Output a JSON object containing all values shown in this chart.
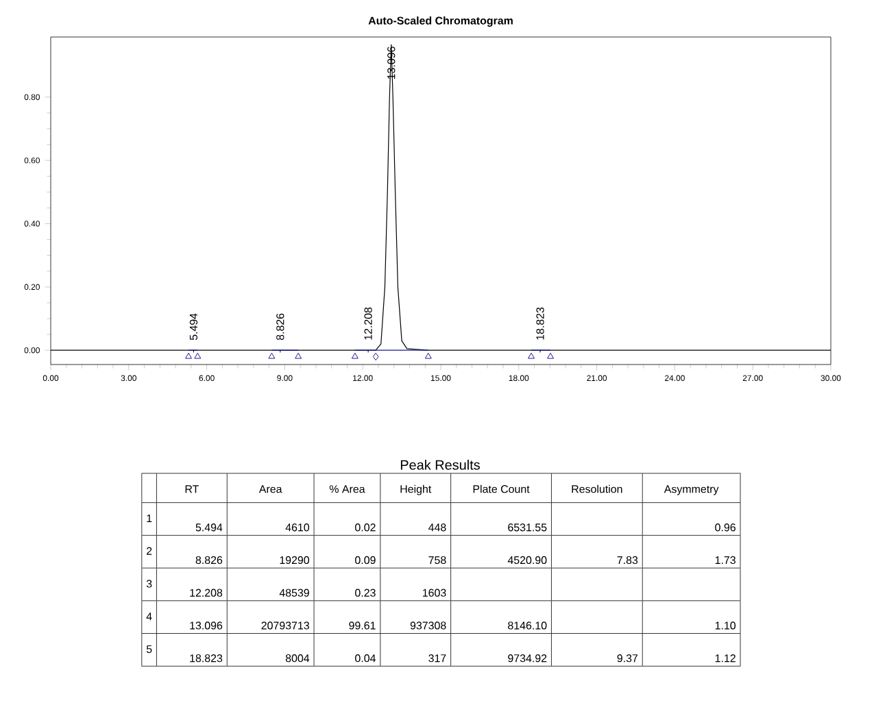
{
  "chart_data": {
    "type": "line",
    "title": "Auto-Scaled Chromatogram",
    "xlim": [
      0,
      30
    ],
    "ylim": [
      -0.045,
      0.99
    ],
    "xticks": [
      {
        "value": 0,
        "label": "0.00"
      },
      {
        "value": 3,
        "label": "3.00"
      },
      {
        "value": 6,
        "label": "6.00"
      },
      {
        "value": 9,
        "label": "9.00"
      },
      {
        "value": 12,
        "label": "12.00"
      },
      {
        "value": 15,
        "label": "15.00"
      },
      {
        "value": 18,
        "label": "18.00"
      },
      {
        "value": 21,
        "label": "21.00"
      },
      {
        "value": 24,
        "label": "24.00"
      },
      {
        "value": 27,
        "label": "27.00"
      },
      {
        "value": 30,
        "label": "30.00"
      }
    ],
    "yticks": [
      {
        "value": 0,
        "label": "0.00"
      },
      {
        "value": 0.2,
        "label": "0.20"
      },
      {
        "value": 0.4,
        "label": "0.40"
      },
      {
        "value": 0.6,
        "label": "0.60"
      },
      {
        "value": 0.8,
        "label": "0.80"
      }
    ],
    "series": [
      {
        "color": "#000000",
        "x": [
          0,
          12.5,
          12.7,
          12.85,
          12.95,
          13.03,
          13.096,
          13.16,
          13.25,
          13.35,
          13.5,
          13.7,
          14.5,
          30
        ],
        "values": [
          0,
          0,
          0.02,
          0.2,
          0.5,
          0.8,
          0.966,
          0.8,
          0.5,
          0.2,
          0.03,
          0.005,
          0,
          0
        ]
      },
      {
        "color": "#1a1a8c",
        "x": [
          5.3,
          5.65,
          5.7,
          8.5,
          9.52,
          9.6,
          11.7,
          14.52,
          14.6,
          18.48,
          19.22
        ],
        "values": [
          0,
          0,
          null,
          0,
          0,
          null,
          0,
          0,
          null,
          0,
          0
        ]
      },
      {
        "type": "scatter",
        "marker": "triangle",
        "color": "#1a1a8c",
        "x": [
          5.3,
          5.65,
          8.5,
          9.52,
          11.7,
          14.52,
          18.48,
          19.22
        ],
        "values": [
          -0.02,
          -0.02,
          -0.02,
          -0.02,
          -0.02,
          -0.02,
          -0.02,
          -0.02
        ]
      },
      {
        "type": "scatter",
        "marker": "diamond",
        "color": "#1a1a8c",
        "x": [
          12.5
        ],
        "values": [
          -0.02
        ]
      }
    ],
    "annotations": [
      {
        "text": "5.494",
        "x": 5.494,
        "y": 0
      },
      {
        "text": "8.826",
        "x": 8.826,
        "y": 0
      },
      {
        "text": "12.208",
        "x": 12.208,
        "y": 0
      },
      {
        "text": "13.096",
        "x": 13.096,
        "y": 0.966
      },
      {
        "text": "18.823",
        "x": 18.823,
        "y": 0
      },
      "Peak Results",
      null,
      "RT",
      "Area",
      "% Area",
      "Height",
      "Plate Count",
      "Resolution",
      "Asymmetry",
      "1",
      "5.494",
      "4610",
      "0.02",
      "448",
      "6531.55",
      null,
      "0.96",
      "2",
      "8.826",
      "19290",
      "0.09",
      "758",
      "4520.90",
      "7.83",
      "1.73",
      "3",
      "12.208",
      "48539",
      "0.23",
      "1603",
      null,
      null,
      null,
      "4",
      "13.096",
      "20793713",
      "99.61",
      "937308",
      "8146.10",
      null,
      "1.10",
      "5",
      "18.823",
      "8004",
      "0.04",
      "317",
      "9734.92",
      "9.37",
      "1.12"
    ]
  }
}
